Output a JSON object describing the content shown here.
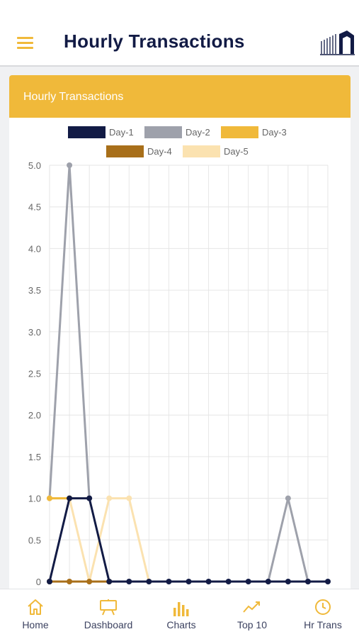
{
  "header": {
    "title": "Hourly Transactions"
  },
  "card": {
    "title": "Hourly Transactions"
  },
  "chart_data": {
    "type": "line",
    "x": [
      0,
      1,
      2,
      3,
      4,
      5,
      6,
      7,
      8,
      9,
      10,
      11,
      12,
      13,
      14
    ],
    "ylim": [
      0,
      5
    ],
    "yticks": [
      "0",
      "0.5",
      "1.0",
      "1.5",
      "2.0",
      "2.5",
      "3.0",
      "3.5",
      "4.0",
      "4.5",
      "5.0"
    ],
    "grid": true,
    "legend_position": "top",
    "series": [
      {
        "name": "Day-1",
        "color": "#121b45",
        "values": [
          0,
          1,
          1,
          0,
          0,
          0,
          0,
          0,
          0,
          0,
          0,
          0,
          0,
          0,
          0
        ]
      },
      {
        "name": "Day-2",
        "color": "#9ea1ab",
        "values": [
          1,
          5,
          1,
          null,
          null,
          null,
          null,
          null,
          null,
          null,
          null,
          0,
          1,
          0,
          null
        ]
      },
      {
        "name": "Day-3",
        "color": "#f0b93a",
        "values": [
          1,
          1,
          null,
          null,
          null,
          null,
          null,
          null,
          null,
          null,
          null,
          null,
          null,
          null,
          null
        ]
      },
      {
        "name": "Day-4",
        "color": "#a86f1a",
        "values": [
          0,
          0,
          0,
          0,
          null,
          null,
          null,
          null,
          null,
          null,
          null,
          null,
          null,
          null,
          null
        ]
      },
      {
        "name": "Day-5",
        "color": "#fbe2b0",
        "values": [
          1,
          1,
          0,
          1,
          1,
          0,
          null,
          null,
          null,
          null,
          null,
          null,
          null,
          null,
          null
        ]
      }
    ]
  },
  "tabs": [
    {
      "label": "Home",
      "icon": "home-icon"
    },
    {
      "label": "Dashboard",
      "icon": "dashboard-icon"
    },
    {
      "label": "Charts",
      "icon": "bar-chart-icon"
    },
    {
      "label": "Top 10",
      "icon": "trend-up-icon"
    },
    {
      "label": "Hr Trans",
      "icon": "clock-icon"
    }
  ],
  "colors": {
    "accent": "#f0b93a",
    "title": "#121b45"
  }
}
